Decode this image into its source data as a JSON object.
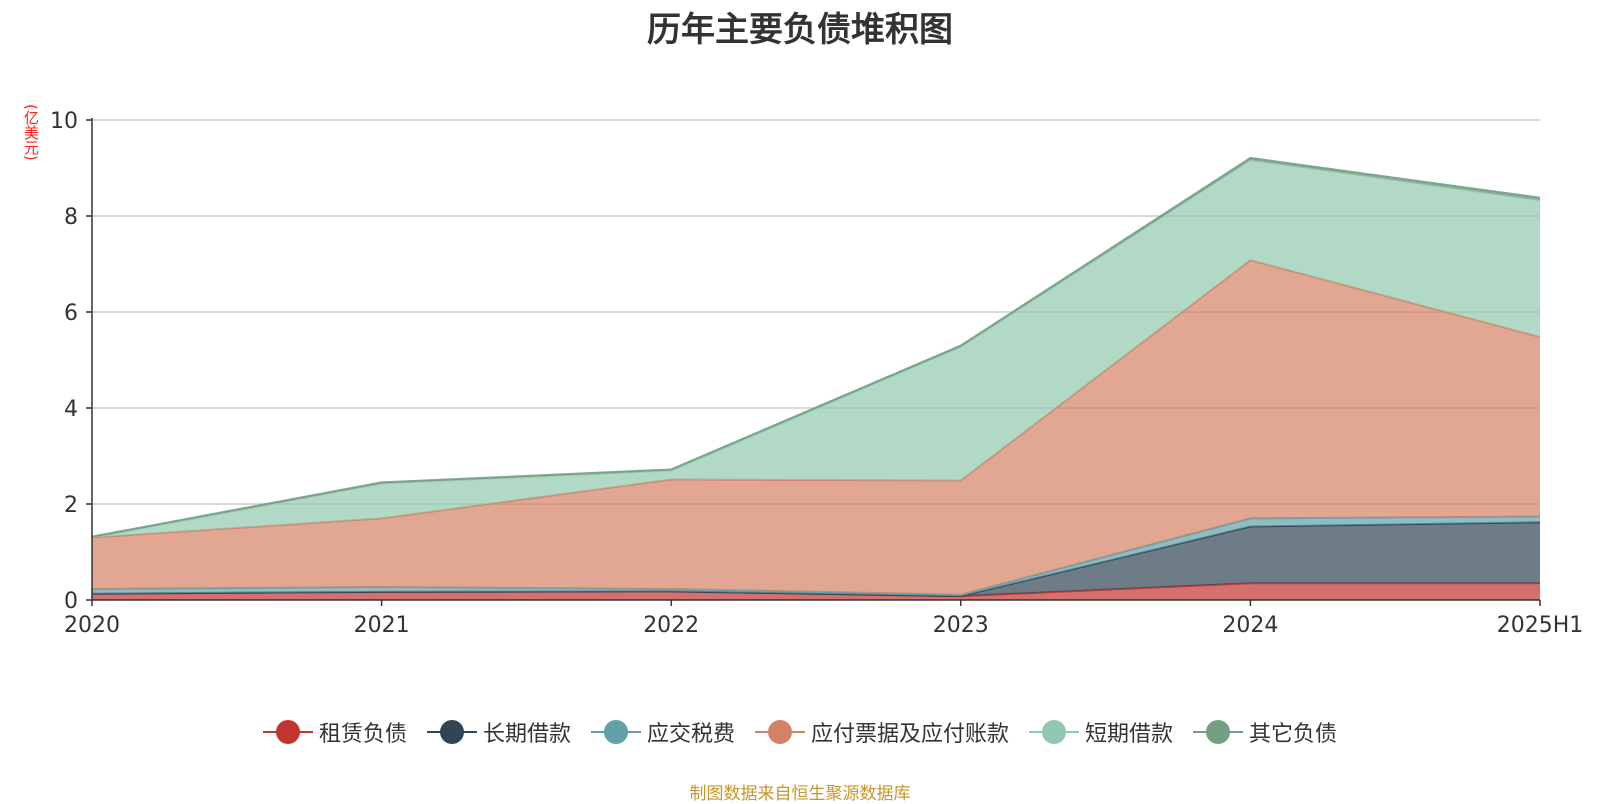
{
  "title": "历年主要负债堆积图",
  "unit_label": "(亿美元)",
  "source_note": "制图数据来自恒生聚源数据库",
  "colors": {
    "租赁负债": "#c23531",
    "长期借款": "#2f4554",
    "应交税费": "#61a0a8",
    "应付票据及应付账款": "#d48265",
    "短期借款": "#91c7ae",
    "其它负债": "#749f83"
  },
  "chart_data": {
    "type": "area",
    "stacked": true,
    "title": "历年主要负债堆积图",
    "ylabel": "(亿美元)",
    "xlabel": "",
    "categories": [
      "2020",
      "2021",
      "2022",
      "2023",
      "2024",
      "2025H1"
    ],
    "ylim": [
      0,
      10
    ],
    "yticks": [
      "0",
      "2",
      "4",
      "6",
      "8",
      "10"
    ],
    "grid": true,
    "legend_position": "bottom",
    "series": [
      {
        "name": "租赁负债",
        "values": [
          0.13,
          0.17,
          0.18,
          0.08,
          0.35,
          0.35
        ]
      },
      {
        "name": "长期借款",
        "values": [
          0.0,
          0.0,
          0.0,
          0.0,
          1.18,
          1.27
        ]
      },
      {
        "name": "应交税费",
        "values": [
          0.1,
          0.1,
          0.05,
          0.03,
          0.17,
          0.12
        ]
      },
      {
        "name": "应付票据及应付账款",
        "values": [
          1.07,
          1.43,
          2.28,
          2.38,
          5.38,
          3.74
        ]
      },
      {
        "name": "短期借款",
        "values": [
          0.0,
          0.73,
          0.19,
          2.79,
          2.09,
          2.85
        ]
      },
      {
        "name": "其它负债",
        "values": [
          0.02,
          0.02,
          0.02,
          0.02,
          0.04,
          0.05
        ]
      }
    ]
  }
}
